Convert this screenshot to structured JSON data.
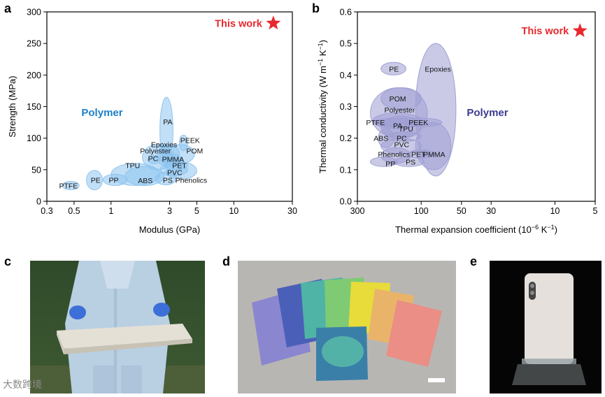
{
  "panel_labels": {
    "a": "a",
    "b": "b",
    "c": "c",
    "d": "d",
    "e": "e"
  },
  "watermark": "大数跨境",
  "chart_data": [
    {
      "type": "scatter",
      "panel": "a",
      "xlabel": "Modulus (GPa)",
      "ylabel": "Strength (MPa)",
      "x_scale": "log",
      "xlim": [
        0.3,
        30
      ],
      "ylim": [
        0,
        300
      ],
      "xticks": [
        0.3,
        0.5,
        1,
        3,
        5,
        10,
        30
      ],
      "xtick_labels": [
        "0.3",
        "0.5",
        "1",
        "3",
        "5",
        "10",
        "30"
      ],
      "yticks": [
        0,
        50,
        100,
        150,
        200,
        250,
        300
      ],
      "ytick_labels": [
        "0",
        "50",
        "100",
        "150",
        "200",
        "250",
        "300"
      ],
      "group_label": "Polymer",
      "group_color": "#1e7fc8",
      "region_color": "#8ec5f0",
      "highlight": {
        "label": "This work",
        "x": 21,
        "y": 282,
        "color": "#e8282d"
      },
      "materials": [
        {
          "name": "PTFE",
          "x": 0.45,
          "y": 25,
          "x_range": [
            0.4,
            0.55
          ],
          "y_range": [
            21,
            29
          ]
        },
        {
          "name": "PE",
          "x": 0.75,
          "y": 34,
          "x_range": [
            0.63,
            0.85
          ],
          "y_range": [
            18,
            49
          ]
        },
        {
          "name": "PP",
          "x": 1.05,
          "y": 34,
          "x_range": [
            0.86,
            1.35
          ],
          "y_range": [
            25,
            43
          ]
        },
        {
          "name": "ABS",
          "x": 1.9,
          "y": 33,
          "x_range": [
            1.3,
            2.7
          ],
          "y_range": [
            25,
            55
          ]
        },
        {
          "name": "PS",
          "x": 2.9,
          "y": 34,
          "x_range": [
            2.3,
            3.4
          ],
          "y_range": [
            26,
            46
          ]
        },
        {
          "name": "Phenolics",
          "x": 4.5,
          "y": 34,
          "x_range": [
            2.8,
            5.0
          ],
          "y_range": [
            35,
            62
          ]
        },
        {
          "name": "TPU",
          "x": 1.5,
          "y": 57,
          "x_range": [
            1.0,
            2.5
          ],
          "y_range": [
            25,
            60
          ]
        },
        {
          "name": "PVC",
          "x": 3.3,
          "y": 46,
          "x_range": [
            2.5,
            4.2
          ],
          "y_range": [
            40,
            60
          ]
        },
        {
          "name": "PET",
          "x": 3.6,
          "y": 57,
          "x_range": [
            2.7,
            4.2
          ],
          "y_range": [
            50,
            65
          ]
        },
        {
          "name": "PMMA",
          "x": 3.2,
          "y": 67,
          "x_range": [
            2.4,
            3.8
          ],
          "y_range": [
            55,
            75
          ]
        },
        {
          "name": "PC",
          "x": 2.2,
          "y": 68,
          "x_range": [
            2.0,
            2.5
          ],
          "y_range": [
            60,
            72
          ]
        },
        {
          "name": "Polyester",
          "x": 2.3,
          "y": 80,
          "x_range": [
            1.8,
            3.2
          ],
          "y_range": [
            50,
            90
          ]
        },
        {
          "name": "Epoxies",
          "x": 2.7,
          "y": 90,
          "x_range": [
            2.4,
            3.6
          ],
          "y_range": [
            60,
            90
          ]
        },
        {
          "name": "POM",
          "x": 4.8,
          "y": 80,
          "x_range": [
            2.8,
            4.8
          ],
          "y_range": [
            60,
            90
          ]
        },
        {
          "name": "PEEK",
          "x": 4.4,
          "y": 97,
          "x_range": [
            3.6,
            4.2
          ],
          "y_range": [
            80,
            105
          ]
        },
        {
          "name": "PA",
          "x": 2.9,
          "y": 126,
          "x_range": [
            2.5,
            3.2
          ],
          "y_range": [
            60,
            165
          ]
        }
      ]
    },
    {
      "type": "scatter",
      "panel": "b",
      "xlabel": "Thermal expansion coefficient (10",
      "xlabel_sup": "−6",
      "xlabel_unit": " K",
      "xlabel_sup2": "−1",
      "xlabel_end": ")",
      "ylabel": "Thermal conductivity (W m",
      "ylabel_sup": "−1",
      "ylabel_unit": " K",
      "ylabel_sup2": "−1",
      "ylabel_end": ")",
      "x_scale": "log",
      "x_reversed": true,
      "xlim": [
        300,
        5
      ],
      "ylim": [
        0,
        0.6
      ],
      "xticks": [
        300,
        100,
        50,
        30,
        10,
        5
      ],
      "xtick_labels": [
        "300",
        "100",
        "50",
        "30",
        "10",
        "5"
      ],
      "yticks": [
        0,
        0.1,
        0.2,
        0.3,
        0.4,
        0.5,
        0.6
      ],
      "ytick_labels": [
        "0.0",
        "0.1",
        "0.2",
        "0.3",
        "0.4",
        "0.5",
        "0.6"
      ],
      "group_label": "Polymer",
      "group_color": "#3b3b8f",
      "region_color": "#9f9fd4",
      "highlight": {
        "label": "This work",
        "x": 6.5,
        "y": 0.54,
        "color": "#e8282d"
      },
      "materials": [
        {
          "name": "PE",
          "x": 160,
          "y": 0.42,
          "x_range": [
            130,
            200
          ],
          "y_range": [
            0.4,
            0.44
          ]
        },
        {
          "name": "Epoxies",
          "x": 75,
          "y": 0.42,
          "x_range": [
            55,
            110
          ],
          "y_range": [
            0.08,
            0.5
          ]
        },
        {
          "name": "POM",
          "x": 150,
          "y": 0.325,
          "x_range": [
            100,
            200
          ],
          "y_range": [
            0.29,
            0.36
          ]
        },
        {
          "name": "Polyester",
          "x": 145,
          "y": 0.29,
          "x_range": [
            90,
            240
          ],
          "y_range": [
            0.2,
            0.36
          ]
        },
        {
          "name": "PTFE",
          "x": 220,
          "y": 0.25,
          "x_range": [
            100,
            230
          ],
          "y_range": [
            0.24,
            0.26
          ]
        },
        {
          "name": "PA",
          "x": 150,
          "y": 0.24,
          "x_range": [
            100,
            230
          ],
          "y_range": [
            0.23,
            0.28
          ]
        },
        {
          "name": "PEEK",
          "x": 105,
          "y": 0.25,
          "x_range": [
            70,
            140
          ],
          "y_range": [
            0.24,
            0.26
          ]
        },
        {
          "name": "TPU",
          "x": 130,
          "y": 0.23,
          "x_range": [
            100,
            200
          ],
          "y_range": [
            0.2,
            0.27
          ]
        },
        {
          "name": "ABS",
          "x": 200,
          "y": 0.2,
          "x_range": [
            160,
            210
          ],
          "y_range": [
            0.17,
            0.23
          ]
        },
        {
          "name": "PC",
          "x": 140,
          "y": 0.2,
          "x_range": [
            100,
            180
          ],
          "y_range": [
            0.19,
            0.22
          ]
        },
        {
          "name": "PVC",
          "x": 140,
          "y": 0.18,
          "x_range": [
            100,
            200
          ],
          "y_range": [
            0.15,
            0.2
          ]
        },
        {
          "name": "Phenolics",
          "x": 160,
          "y": 0.15,
          "x_range": [
            120,
            200
          ],
          "y_range": [
            0.12,
            0.17
          ]
        },
        {
          "name": "PET",
          "x": 105,
          "y": 0.15,
          "x_range": [
            80,
            125
          ],
          "y_range": [
            0.14,
            0.16
          ]
        },
        {
          "name": "PMMA",
          "x": 80,
          "y": 0.15,
          "x_range": [
            60,
            110
          ],
          "y_range": [
            0.1,
            0.25
          ]
        },
        {
          "name": "PP",
          "x": 170,
          "y": 0.12,
          "x_range": [
            150,
            240
          ],
          "y_range": [
            0.11,
            0.14
          ]
        },
        {
          "name": "PS",
          "x": 120,
          "y": 0.125,
          "x_range": [
            95,
            160
          ],
          "y_range": [
            0.11,
            0.14
          ]
        }
      ]
    }
  ]
}
